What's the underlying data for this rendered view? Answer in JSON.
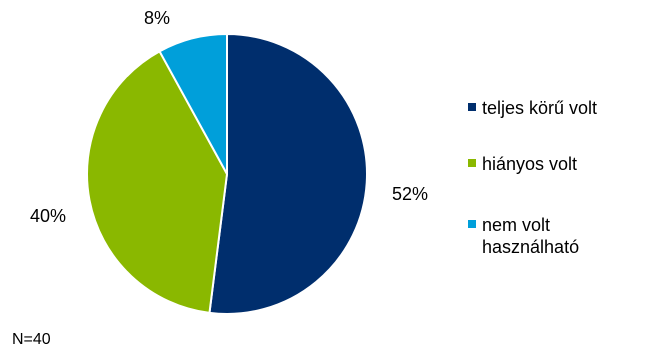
{
  "chart_data": {
    "type": "pie",
    "categories": [
      "teljes körű volt",
      "hiányos volt",
      "nem volt használható"
    ],
    "values": [
      52,
      40,
      8
    ],
    "value_labels": [
      "52%",
      "40%",
      "8%"
    ],
    "colors": [
      "#002E6D",
      "#8AB800",
      "#009FDA"
    ],
    "start_angle_deg": 0,
    "direction": "clockwise",
    "legend_position": "right",
    "note": "N=40"
  }
}
